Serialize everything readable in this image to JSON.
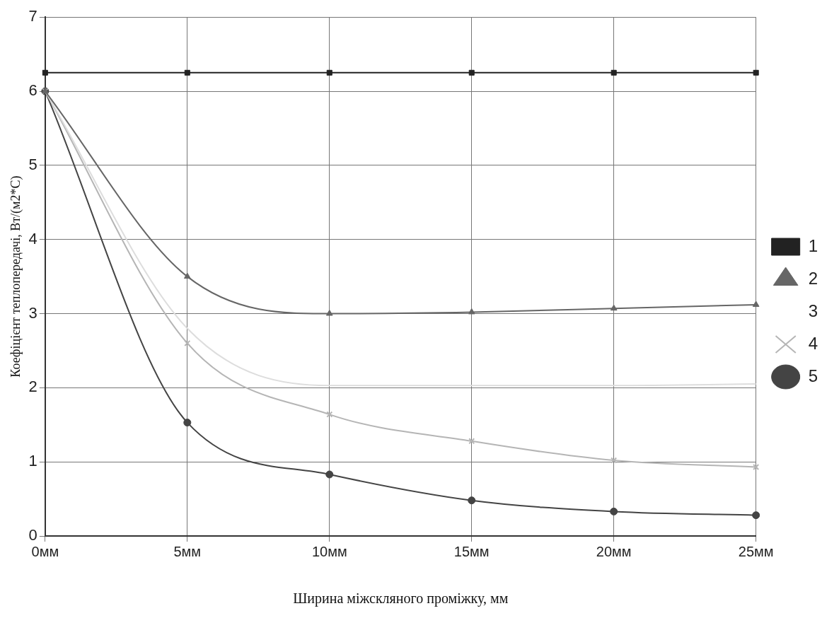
{
  "chart_data": {
    "type": "line",
    "xlabel": "Ширина міжскляного проміжку, мм",
    "ylabel": "Коефіцієнт теплопередачі, Вт/(м2*С)",
    "categories": [
      "0мм",
      "5мм",
      "10мм",
      "15мм",
      "20мм",
      "25мм"
    ],
    "series": [
      {
        "name": "1",
        "color": "#222222",
        "marker": "square",
        "values": [
          6.25,
          6.25,
          6.25,
          6.25,
          6.25,
          6.25
        ]
      },
      {
        "name": "2",
        "color": "#666666",
        "marker": "triangle",
        "values": [
          6,
          3.5,
          3.0,
          3.02,
          3.07,
          3.12
        ]
      },
      {
        "name": "3",
        "color": "#dddddd",
        "marker": "none",
        "values": [
          6,
          2.8,
          2.03,
          2.03,
          2.03,
          2.05
        ]
      },
      {
        "name": "4",
        "color": "#b5b5b5",
        "marker": "cross",
        "values": [
          6,
          2.6,
          1.64,
          1.28,
          1.02,
          0.93
        ]
      },
      {
        "name": "5",
        "color": "#444444",
        "marker": "circle",
        "values": [
          6,
          1.53,
          0.83,
          0.48,
          0.33,
          0.28
        ]
      }
    ],
    "ylim": [
      0,
      7
    ],
    "yticks": [
      0,
      1,
      2,
      3,
      4,
      5,
      6,
      7
    ],
    "grid": true,
    "legend": "right"
  }
}
